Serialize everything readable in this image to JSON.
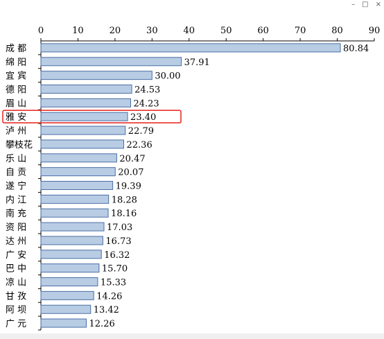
{
  "window": {
    "minimize_label": "–",
    "maximize_label": "□",
    "close_label": "×"
  },
  "chart_data": {
    "type": "bar",
    "orientation": "horizontal",
    "title": "",
    "xlabel": "",
    "ylabel": "",
    "xlim": [
      0,
      90
    ],
    "xticks": [
      0,
      10,
      20,
      30,
      40,
      50,
      60,
      70,
      80,
      90
    ],
    "xtick_position": "top",
    "grid": false,
    "categories": [
      "成 都",
      "绵 阳",
      "宜 宾",
      "德 阳",
      "眉 山",
      "雅 安",
      "泸 州",
      "攀枝花",
      "乐 山",
      "自 贡",
      "遂 宁",
      "内 江",
      "南 充",
      "资 阳",
      "达 州",
      "广 安",
      "巴 中",
      "凉 山",
      "甘 孜",
      "阿 坝",
      "广 元"
    ],
    "values": [
      80.84,
      37.91,
      30.0,
      24.53,
      24.23,
      23.4,
      22.79,
      22.36,
      20.47,
      20.07,
      19.39,
      18.28,
      18.16,
      17.03,
      16.73,
      16.32,
      15.7,
      15.33,
      14.26,
      13.42,
      12.26
    ],
    "value_labels": [
      "80.84",
      "37.91",
      "30.00",
      "24.53",
      "24.23",
      "23.40",
      "22.79",
      "22.36",
      "20.47",
      "20.07",
      "19.39",
      "18.28",
      "18.16",
      "17.03",
      "16.73",
      "16.32",
      "15.70",
      "15.33",
      "14.26",
      "13.42",
      "12.26"
    ],
    "highlighted_category": "雅 安",
    "colors": {
      "bar_fill": "#b8cce4",
      "bar_stroke": "#4a6fa5",
      "highlight_box": "#e8322a",
      "axis": "#000000",
      "text": "#000000"
    }
  }
}
